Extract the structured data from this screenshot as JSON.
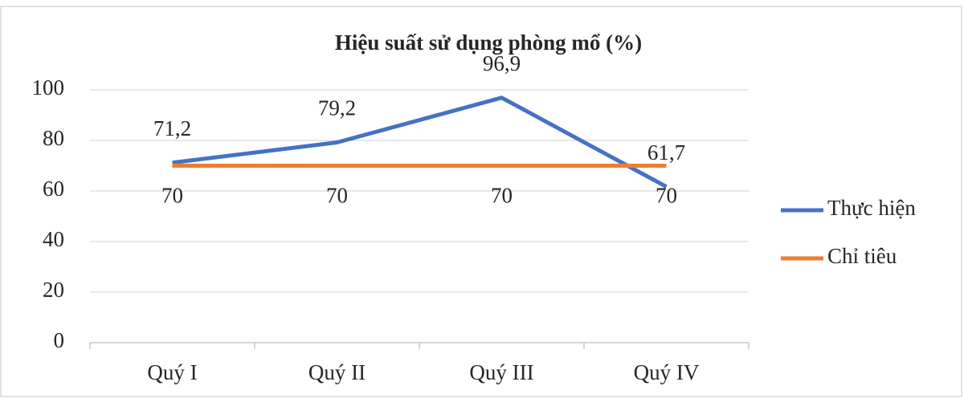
{
  "chart_data": {
    "type": "line",
    "title": "Hiệu suất sử dụng phòng mổ (%)",
    "categories": [
      "Quý I",
      "Quý II",
      "Quý III",
      "Quý IV"
    ],
    "series": [
      {
        "name": "Thực hiện",
        "color": "#4472c4",
        "values": [
          71.2,
          79.2,
          96.9,
          61.7
        ],
        "value_labels": [
          "71,2",
          "79,2",
          "96,9",
          "61,7"
        ]
      },
      {
        "name": "Chỉ tiêu",
        "color": "#ed7d31",
        "values": [
          70,
          70,
          70,
          70
        ]
      }
    ],
    "ylim": [
      0,
      100
    ],
    "yticks": [
      0,
      20,
      40,
      60,
      80,
      100
    ],
    "grid": true,
    "legend": "right"
  }
}
